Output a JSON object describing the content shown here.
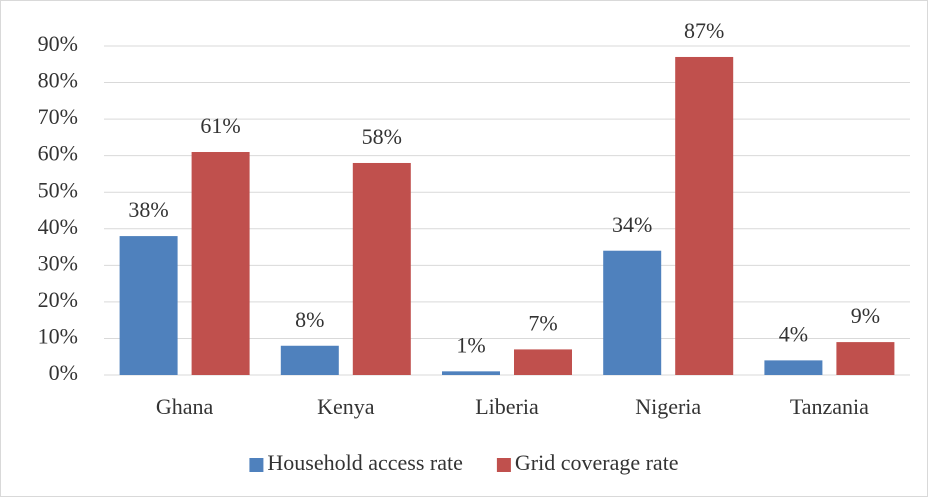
{
  "chart_data": {
    "type": "bar",
    "categories": [
      "Ghana",
      "Kenya",
      "Liberia",
      "Nigeria",
      "Tanzania"
    ],
    "series": [
      {
        "name": "Household access rate",
        "color": "#4f81bd",
        "values": [
          38,
          8,
          1,
          34,
          4
        ],
        "value_labels": [
          "38%",
          "8%",
          "1%",
          "34%",
          "4%"
        ]
      },
      {
        "name": "Grid coverage rate",
        "color": "#c0504d",
        "values": [
          61,
          58,
          7,
          87,
          9
        ],
        "value_labels": [
          "61%",
          "58%",
          "7%",
          "87%",
          "9%"
        ]
      }
    ],
    "ylim": [
      0,
      90
    ],
    "yticks": [
      {
        "value": 0,
        "label": "0%"
      },
      {
        "value": 10,
        "label": "10%"
      },
      {
        "value": 20,
        "label": "20%"
      },
      {
        "value": 30,
        "label": "30%"
      },
      {
        "value": 40,
        "label": "40%"
      },
      {
        "value": 50,
        "label": "50%"
      },
      {
        "value": 60,
        "label": "60%"
      },
      {
        "value": 70,
        "label": "70%"
      },
      {
        "value": 80,
        "label": "80%"
      },
      {
        "value": 90,
        "label": "90%"
      }
    ],
    "grid": true,
    "legend": "bottom"
  }
}
